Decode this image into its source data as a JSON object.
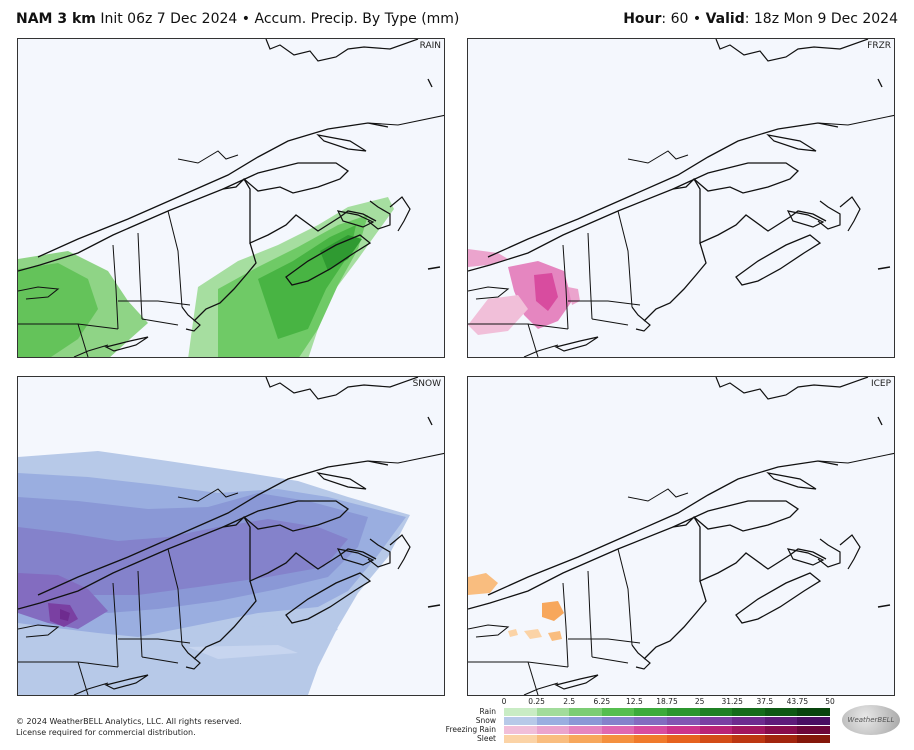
{
  "header": {
    "model": "NAM 3 km",
    "init": "Init 06z 7 Dec 2024",
    "bullet": "•",
    "product": "Accum. Precip. By Type (mm)",
    "hour_label": "Hour",
    "hour_value": ": 60",
    "valid_label": "Valid",
    "valid_value": ": 18z Mon 9 Dec 2024"
  },
  "panels": [
    {
      "id": "rain",
      "label": "RAIN"
    },
    {
      "id": "frzr",
      "label": "FRZR"
    },
    {
      "id": "snow",
      "label": "SNOW"
    },
    {
      "id": "icep",
      "label": "ICEP"
    }
  ],
  "legend": {
    "ticks": [
      "0",
      "0.25",
      "2.5",
      "6.25",
      "12.5",
      "18.75",
      "25",
      "31.25",
      "37.5",
      "43.75",
      "50"
    ],
    "rows": [
      {
        "label": "Rain",
        "colors": [
          "#c9ecc4",
          "#a2dc9b",
          "#7ccd74",
          "#56be4f",
          "#3cab3c",
          "#2c962e",
          "#1f8024",
          "#156b1b",
          "#0e5814",
          "#08440d"
        ]
      },
      {
        "label": "Snow",
        "colors": [
          "#b7c9e8",
          "#9aaee0",
          "#8a98d6",
          "#8482cb",
          "#836cc0",
          "#8156b2",
          "#7a40a2",
          "#6e2b8f",
          "#5e1b7a",
          "#4a0e63"
        ]
      },
      {
        "label": "Freezing Rain",
        "colors": [
          "#f1bfd9",
          "#eba4cd",
          "#e586c0",
          "#df68b1",
          "#d84c9f",
          "#cc348b",
          "#b92375",
          "#a2165f",
          "#880c4c",
          "#6c063a"
        ]
      },
      {
        "label": "Sleet",
        "colors": [
          "#fbd3a6",
          "#f9bd7f",
          "#f7a75c",
          "#f4903f",
          "#f07a2c",
          "#e6621f",
          "#d34c17",
          "#bd3712",
          "#a2250e",
          "#84170a"
        ]
      }
    ]
  },
  "footer": {
    "copyright": "© 2024 WeatherBELL Analytics, LLC. All rights reserved.",
    "license": "License required for commercial distribution."
  },
  "logo_text": "WeatherBELL"
}
